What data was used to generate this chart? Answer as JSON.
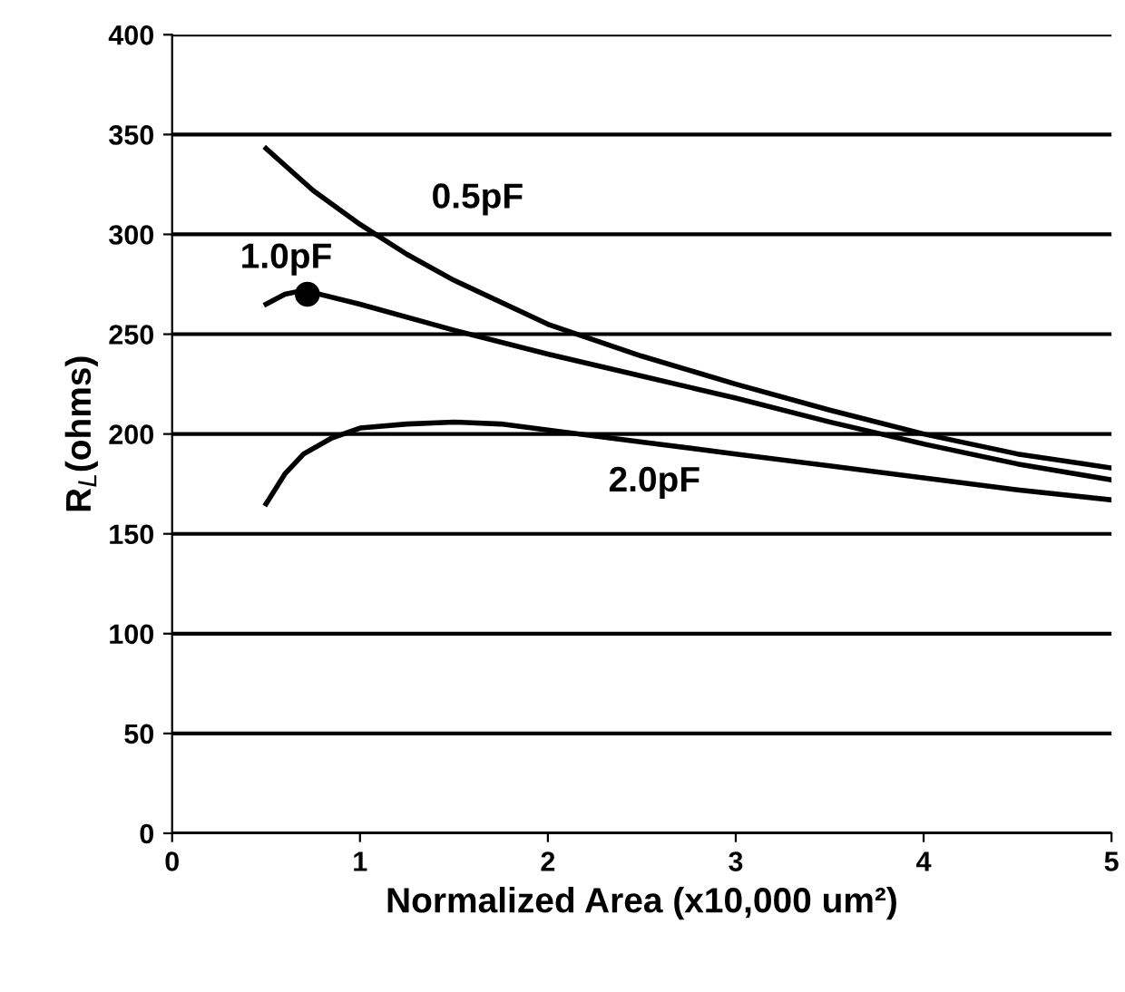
{
  "chart_data": {
    "type": "line",
    "xlabel": "Normalized Area (x10,000 um²)",
    "ylabel": "R$_{L}$(ohms)",
    "xlim": [
      0,
      5
    ],
    "xticks": [
      0,
      1,
      2,
      3,
      4,
      5
    ],
    "ylim": [
      0,
      400
    ],
    "yticks": [
      0,
      50,
      100,
      150,
      200,
      250,
      300,
      350,
      400
    ],
    "grid": "y",
    "series": [
      {
        "name": "0.5pF",
        "color": "#000000",
        "x": [
          0.5,
          0.75,
          1,
          1.25,
          1.5,
          2,
          2.5,
          3,
          3.5,
          4,
          4.5,
          5
        ],
        "values": [
          343,
          322,
          305,
          290,
          277,
          255,
          239,
          225,
          212,
          200,
          190,
          183
        ]
      },
      {
        "name": "1.0pF",
        "color": "#000000",
        "x": [
          0.5,
          0.6,
          0.7,
          1,
          1.5,
          2,
          2.5,
          3,
          3.5,
          4,
          4.5,
          5
        ],
        "values": [
          265,
          270,
          272,
          265,
          252,
          240,
          229,
          218,
          206,
          195,
          185,
          177
        ]
      },
      {
        "name": "2.0pF",
        "color": "#000000",
        "x": [
          0.5,
          0.6,
          0.7,
          0.85,
          1,
          1.25,
          1.5,
          1.75,
          2,
          2.5,
          3,
          3.5,
          4,
          4.5,
          5
        ],
        "values": [
          165,
          180,
          190,
          198,
          203,
          205,
          206,
          205,
          202,
          196,
          190,
          184,
          178,
          172,
          167
        ]
      },
      {
        "type": "scatter",
        "marker": "circle",
        "color": "#000000",
        "x": [
          0.72
        ],
        "values": [
          270
        ]
      }
    ]
  }
}
